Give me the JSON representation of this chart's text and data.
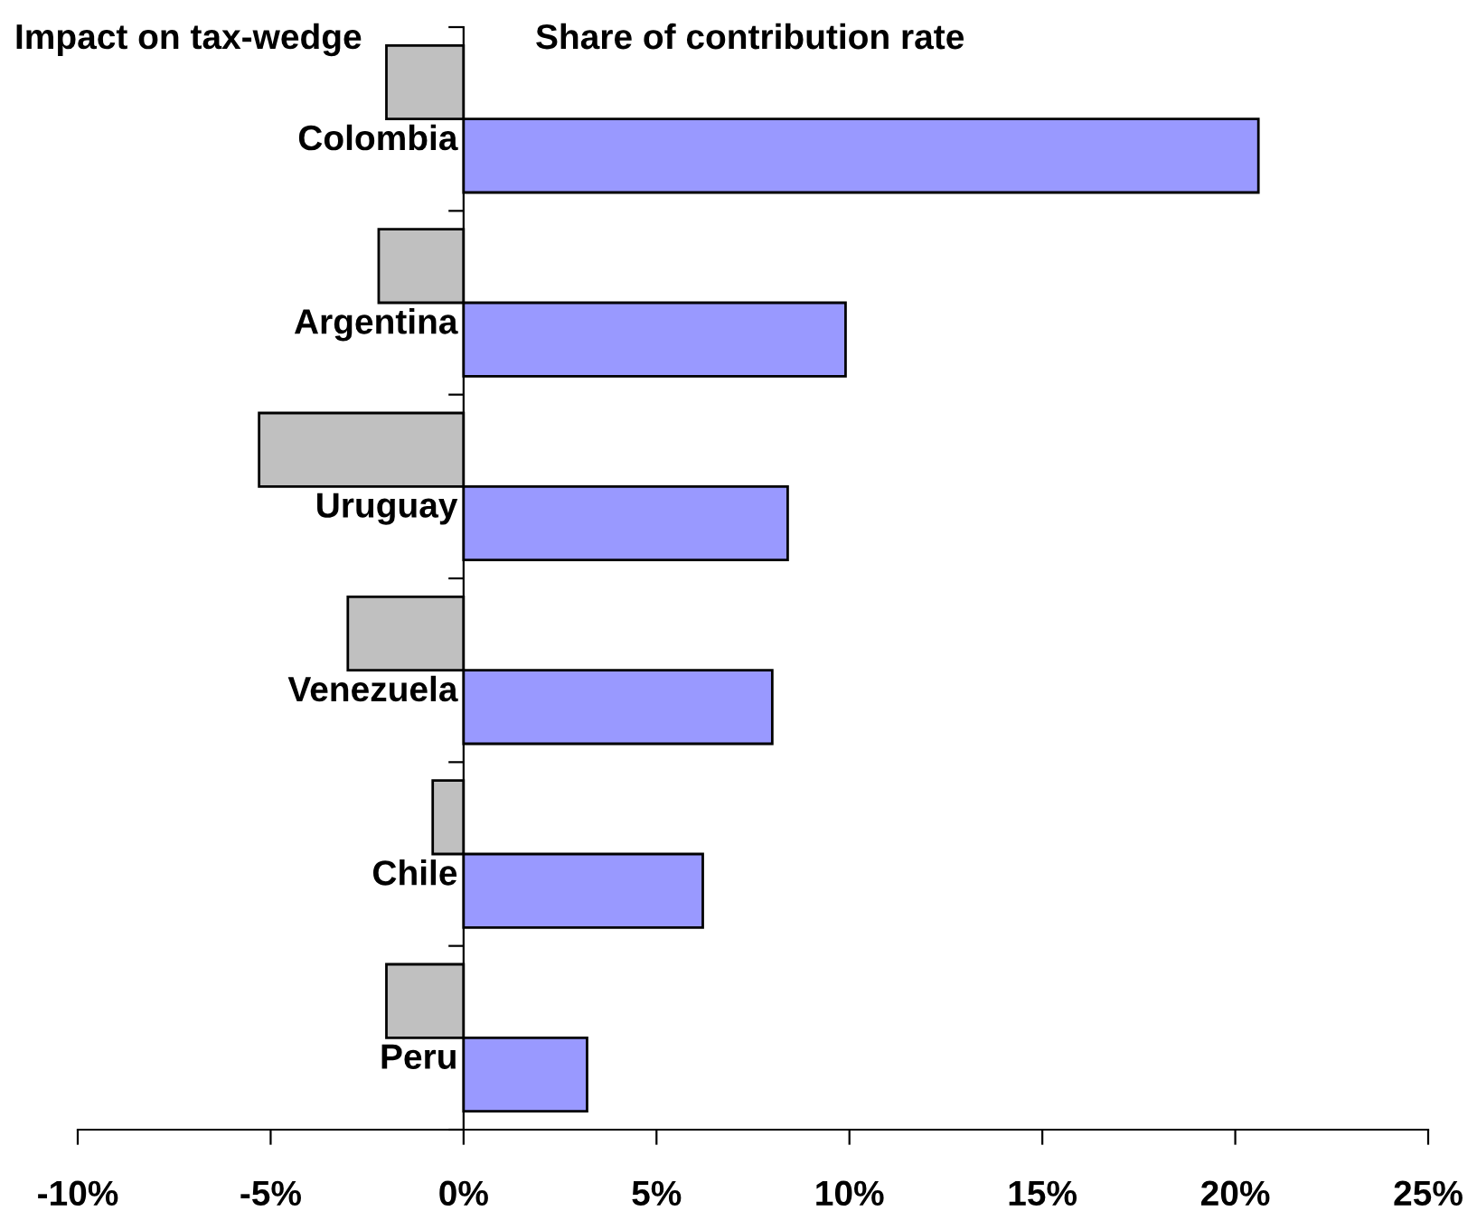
{
  "chart_data": {
    "type": "bar",
    "orientation": "horizontal",
    "categories": [
      "Colombia",
      "Argentina",
      "Uruguay",
      "Venezuela",
      "Chile",
      "Peru"
    ],
    "series": [
      {
        "name": "Impact on tax-wedge",
        "color": "#c0c0c0",
        "values": [
          -2.0,
          -2.2,
          -5.3,
          -3.0,
          -0.8,
          -2.0
        ]
      },
      {
        "name": "Share of contribution rate",
        "color": "#9999ff",
        "values": [
          20.6,
          9.9,
          8.4,
          8.0,
          6.2,
          3.2
        ]
      }
    ],
    "xlim": [
      -10,
      25
    ],
    "xticks": [
      {
        "value": -10,
        "label": "-10%"
      },
      {
        "value": -5,
        "label": "-5%"
      },
      {
        "value": 0,
        "label": "0%"
      },
      {
        "value": 5,
        "label": "5%"
      },
      {
        "value": 10,
        "label": "10%"
      },
      {
        "value": 15,
        "label": "15%"
      },
      {
        "value": 20,
        "label": "20%"
      },
      {
        "value": 25,
        "label": "25%"
      }
    ],
    "grid": false,
    "legend": false
  }
}
